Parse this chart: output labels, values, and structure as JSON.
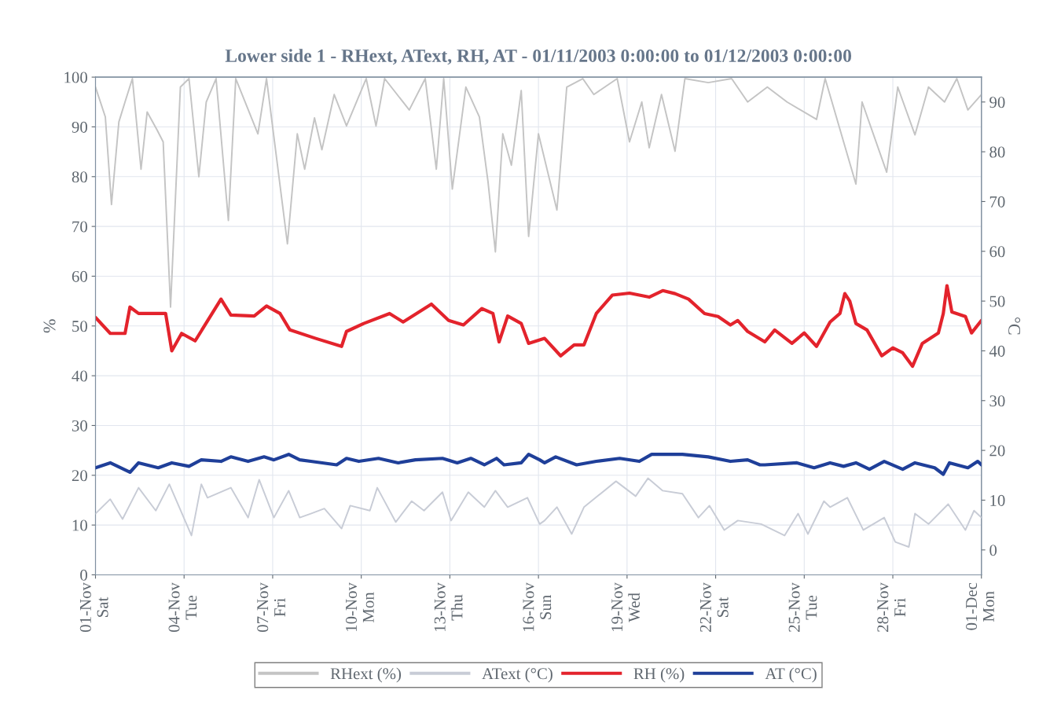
{
  "chart_data": {
    "type": "line",
    "title": "Lower side 1 - RHext, AText, RH, AT - 01/11/2003 0:00:00 to 01/12/2003 0:00:00",
    "ylabel": "%",
    "y2label": "°C",
    "xlim": [
      "2003-11-01",
      "2003-12-01"
    ],
    "xticks": [
      {
        "value": "2003-11-01",
        "label": "01-Nov\nSat"
      },
      {
        "value": "2003-11-04",
        "label": "04-Nov\nTue"
      },
      {
        "value": "2003-11-07",
        "label": "07-Nov\nFri"
      },
      {
        "value": "2003-11-10",
        "label": "10-Nov\nMon"
      },
      {
        "value": "2003-11-13",
        "label": "13-Nov\nThu"
      },
      {
        "value": "2003-11-16",
        "label": "16-Nov\nSun"
      },
      {
        "value": "2003-11-19",
        "label": "19-Nov\nWed"
      },
      {
        "value": "2003-11-22",
        "label": "22-Nov\nSat"
      },
      {
        "value": "2003-11-25",
        "label": "25-Nov\nTue"
      },
      {
        "value": "2003-11-28",
        "label": "28-Nov\nFri"
      },
      {
        "value": "2003-12-01",
        "label": "01-Dec\nMon"
      }
    ],
    "ylim": [
      0,
      100
    ],
    "yticks": [
      0,
      10,
      20,
      30,
      40,
      50,
      60,
      70,
      80,
      90,
      100
    ],
    "y2lim": [
      -5,
      95
    ],
    "y2ticks": [
      0,
      10,
      20,
      30,
      40,
      50,
      60,
      70,
      80,
      90
    ],
    "grid": true,
    "legend": "bottom",
    "marker": "none",
    "line_style": "solid",
    "series": [
      {
        "name": "RHext (%)",
        "color": "#c4c4c4",
        "axis": "y",
        "x": [
          "2003-11-01T00:00",
          "2003-11-01T08:00",
          "2003-11-01T13:00",
          "2003-11-01T19:00",
          "2003-11-02T00:00",
          "2003-11-02T06:00",
          "2003-11-02T13:00",
          "2003-11-02T18:00",
          "2003-11-03T02:00",
          "2003-11-03T07:00",
          "2003-11-03T13:00",
          "2003-11-03T21:00",
          "2003-11-04T04:00",
          "2003-11-04T12:00",
          "2003-11-04T18:00",
          "2003-11-05T02:00",
          "2003-11-05T12:00",
          "2003-11-05T18:00",
          "2003-11-06T12:00",
          "2003-11-06T19:00",
          "2003-11-07T12:00",
          "2003-11-07T20:00",
          "2003-11-08T02:00",
          "2003-11-08T10:00",
          "2003-11-08T16:00",
          "2003-11-09T02:00",
          "2003-11-09T12:00",
          "2003-11-10T04:00",
          "2003-11-10T12:00",
          "2003-11-10T19:00",
          "2003-11-11T15:00",
          "2003-11-12T04:00",
          "2003-11-12T13:00",
          "2003-11-12T19:00",
          "2003-11-13T02:00",
          "2003-11-13T13:00",
          "2003-11-14T00:00",
          "2003-11-14T07:00",
          "2003-11-14T13:00",
          "2003-11-14T19:00",
          "2003-11-15T02:00",
          "2003-11-15T10:00",
          "2003-11-15T16:00",
          "2003-11-16T00:00",
          "2003-11-16T15:00",
          "2003-11-16T23:00",
          "2003-11-17T12:00",
          "2003-11-17T21:00",
          "2003-11-18T16:00",
          "2003-11-19T02:00",
          "2003-11-19T12:00",
          "2003-11-19T18:00",
          "2003-11-20T04:00",
          "2003-11-20T15:00",
          "2003-11-20T23:00",
          "2003-11-21T18:00",
          "2003-11-22T13:00",
          "2003-11-23T02:00",
          "2003-11-23T18:00",
          "2003-11-24T10:00",
          "2003-11-25T10:00",
          "2003-11-25T17:00",
          "2003-11-26T18:00",
          "2003-11-26T23:00",
          "2003-11-27T19:00",
          "2003-11-28T04:00",
          "2003-11-28T18:00",
          "2003-11-29T05:00",
          "2003-11-29T18:00",
          "2003-11-30T04:00",
          "2003-11-30T13:00",
          "2003-12-01T00:00"
        ],
        "values": [
          98,
          92,
          74.4,
          91,
          95,
          99.7,
          81.5,
          93,
          89.4,
          87,
          53.8,
          98,
          99.7,
          80,
          95,
          99.7,
          71.2,
          99.7,
          88.6,
          99.7,
          66.5,
          88.6,
          81.5,
          91.8,
          85.4,
          96.5,
          90.2,
          99.7,
          90.2,
          99.7,
          93.4,
          99.7,
          81.5,
          99.7,
          77.5,
          98,
          92,
          79,
          64.9,
          88.6,
          82.3,
          97.3,
          68,
          88.6,
          73.3,
          98,
          99.7,
          96.5,
          99.7,
          87,
          95,
          85.8,
          96.5,
          85.1,
          99.7,
          98.9,
          99.7,
          95,
          98,
          95,
          91.5,
          99.7,
          78.5,
          95,
          80.9,
          98,
          88.4,
          98,
          95,
          99.7,
          93.4,
          96.5
        ]
      },
      {
        "name": "AText (°C)",
        "color": "#c8ccd6",
        "axis": "y2",
        "x": [
          "2003-11-01T00:00",
          "2003-11-01T12:00",
          "2003-11-01T22:00",
          "2003-11-02T11:00",
          "2003-11-03T01:00",
          "2003-11-03T12:00",
          "2003-11-04T06:00",
          "2003-11-04T14:00",
          "2003-11-04T19:00",
          "2003-11-05T14:00",
          "2003-11-06T04:00",
          "2003-11-06T13:00",
          "2003-11-07T01:00",
          "2003-11-07T13:00",
          "2003-11-07T22:00",
          "2003-11-08T07:00",
          "2003-11-08T18:00",
          "2003-11-09T08:00",
          "2003-11-09T15:00",
          "2003-11-10T07:00",
          "2003-11-10T13:00",
          "2003-11-11T04:00",
          "2003-11-11T17:00",
          "2003-11-12T03:00",
          "2003-11-12T18:00",
          "2003-11-13T01:00",
          "2003-11-13T15:00",
          "2003-11-14T04:00",
          "2003-11-14T13:00",
          "2003-11-14T23:00",
          "2003-11-15T15:00",
          "2003-11-16T01:00",
          "2003-11-16T05:00",
          "2003-11-16T15:00",
          "2003-11-17T03:00",
          "2003-11-17T13:00",
          "2003-11-18T15:00",
          "2003-11-19T07:00",
          "2003-11-19T17:00",
          "2003-11-20T05:00",
          "2003-11-20T21:00",
          "2003-11-21T10:00",
          "2003-11-21T19:00",
          "2003-11-22T07:00",
          "2003-11-22T18:00",
          "2003-11-23T13:00",
          "2003-11-24T08:00",
          "2003-11-24T19:00",
          "2003-11-25T03:00",
          "2003-11-25T16:00",
          "2003-11-25T21:00",
          "2003-11-26T11:00",
          "2003-11-27T00:00",
          "2003-11-27T17:00",
          "2003-11-28T02:00",
          "2003-11-28T13:00",
          "2003-11-28T18:00",
          "2003-11-29T05:00",
          "2003-11-29T21:00",
          "2003-11-30T11:00",
          "2003-11-30T18:00",
          "2003-12-01T00:00"
        ],
        "values": [
          7.3,
          10.2,
          6.2,
          12.5,
          7.9,
          13.2,
          2.9,
          13.2,
          10.5,
          12.5,
          6.5,
          14.1,
          6.5,
          11.9,
          6.5,
          7.3,
          8.3,
          4.3,
          8.9,
          7.9,
          12.5,
          5.6,
          9.8,
          7.9,
          11.6,
          5.9,
          11.6,
          8.6,
          11.9,
          8.6,
          10.5,
          5.2,
          5.9,
          8.6,
          3.2,
          8.6,
          13.8,
          10.8,
          14.4,
          11.9,
          11.3,
          6.5,
          8.9,
          4.0,
          5.9,
          5.2,
          2.9,
          7.3,
          3.2,
          9.8,
          8.6,
          10.5,
          4.0,
          6.5,
          1.6,
          0.6,
          7.3,
          5.2,
          9.2,
          4.0,
          7.9,
          6.5
        ]
      },
      {
        "name": "RH (%)",
        "color": "#e3232c",
        "axis": "y",
        "x": [
          "2003-11-01T00:00",
          "2003-11-01T12:00",
          "2003-11-02T00:00",
          "2003-11-02T04:00",
          "2003-11-02T11:00",
          "2003-11-03T09:00",
          "2003-11-03T14:00",
          "2003-11-03T22:00",
          "2003-11-04T09:00",
          "2003-11-05T06:00",
          "2003-11-05T14:00",
          "2003-11-06T09:00",
          "2003-11-06T19:00",
          "2003-11-07T06:00",
          "2003-11-07T14:00",
          "2003-11-08T11:00",
          "2003-11-09T08:00",
          "2003-11-09T12:00",
          "2003-11-10T02:00",
          "2003-11-10T23:00",
          "2003-11-11T10:00",
          "2003-11-12T09:00",
          "2003-11-12T23:00",
          "2003-11-13T11:00",
          "2003-11-14T02:00",
          "2003-11-14T11:00",
          "2003-11-14T16:00",
          "2003-11-14T23:00",
          "2003-11-15T10:00",
          "2003-11-15T16:00",
          "2003-11-16T05:00",
          "2003-11-16T18:00",
          "2003-11-17T05:00",
          "2003-11-17T13:00",
          "2003-11-17T23:00",
          "2003-11-18T12:00",
          "2003-11-19T02:00",
          "2003-11-19T18:00",
          "2003-11-20T05:00",
          "2003-11-20T15:00",
          "2003-11-21T02:00",
          "2003-11-21T15:00",
          "2003-11-22T02:00",
          "2003-11-22T12:00",
          "2003-11-22T18:00",
          "2003-11-23T02:00",
          "2003-11-23T16:00",
          "2003-11-24T00:00",
          "2003-11-24T14:00",
          "2003-11-25T00:00",
          "2003-11-25T10:00",
          "2003-11-25T21:00",
          "2003-11-26T05:00",
          "2003-11-26T09:00",
          "2003-11-26T13:00",
          "2003-11-26T18:00",
          "2003-11-27T03:00",
          "2003-11-27T15:00",
          "2003-11-28T00:00",
          "2003-11-28T08:00",
          "2003-11-28T16:00",
          "2003-11-29T00:00",
          "2003-11-29T13:00",
          "2003-11-29T17:00",
          "2003-11-29T20:00",
          "2003-11-30T00:00",
          "2003-11-30T11:00",
          "2003-11-30T16:00",
          "2003-12-01T00:00"
        ],
        "values": [
          51.7,
          48.5,
          48.5,
          53.8,
          52.5,
          52.5,
          45,
          48.5,
          47,
          55.4,
          52.2,
          52,
          54,
          52.5,
          49.2,
          47.5,
          45.9,
          48.9,
          50.5,
          52.5,
          50.8,
          54.4,
          51.1,
          50.2,
          53.5,
          52.5,
          46.8,
          52,
          50.5,
          46.5,
          47.5,
          44,
          46.2,
          46.2,
          52.5,
          56.2,
          56.6,
          55.8,
          57.1,
          56.5,
          55.4,
          52.5,
          51.9,
          50.2,
          51.1,
          48.9,
          46.8,
          49.2,
          46.5,
          48.6,
          45.9,
          50.8,
          52.5,
          56.5,
          55,
          50.5,
          49.2,
          44,
          45.6,
          44.6,
          41.9,
          46.5,
          48.6,
          52.5,
          58.1,
          52.8,
          51.9,
          48.6,
          51.1
        ]
      },
      {
        "name": "AT (°C)",
        "color": "#1f3f99",
        "axis": "y2",
        "x": [
          "2003-11-01T00:00",
          "2003-11-01T12:00",
          "2003-11-02T04:00",
          "2003-11-02T11:00",
          "2003-11-03T03:00",
          "2003-11-03T14:00",
          "2003-11-04T04:00",
          "2003-11-04T14:00",
          "2003-11-05T06:00",
          "2003-11-05T14:00",
          "2003-11-06T04:00",
          "2003-11-06T17:00",
          "2003-11-07T01:00",
          "2003-11-07T13:00",
          "2003-11-07T22:00",
          "2003-11-08T07:00",
          "2003-11-09T04:00",
          "2003-11-09T12:00",
          "2003-11-09T22:00",
          "2003-11-10T14:00",
          "2003-11-11T06:00",
          "2003-11-11T20:00",
          "2003-11-12T18:00",
          "2003-11-13T06:00",
          "2003-11-13T17:00",
          "2003-11-14T04:00",
          "2003-11-14T14:00",
          "2003-11-14T20:00",
          "2003-11-15T10:00",
          "2003-11-15T16:00",
          "2003-11-16T01:00",
          "2003-11-16T05:00",
          "2003-11-16T14:00",
          "2003-11-17T07:00",
          "2003-11-17T23:00",
          "2003-11-18T18:00",
          "2003-11-19T10:00",
          "2003-11-19T20:00",
          "2003-11-20T21:00",
          "2003-11-21T18:00",
          "2003-11-22T12:00",
          "2003-11-23T02:00",
          "2003-11-23T12:00",
          "2003-11-23T16:00",
          "2003-11-24T18:00",
          "2003-11-25T08:00",
          "2003-11-25T21:00",
          "2003-11-26T08:00",
          "2003-11-26T18:00",
          "2003-11-27T05:00",
          "2003-11-27T17:00",
          "2003-11-28T08:00",
          "2003-11-28T18:00",
          "2003-11-29T10:00",
          "2003-11-29T17:00",
          "2003-11-29T22:00",
          "2003-11-30T13:00",
          "2003-11-30T21:00",
          "2003-12-01T00:00"
        ],
        "values": [
          16.5,
          17.5,
          15.6,
          17.5,
          16.5,
          17.5,
          16.8,
          18.1,
          17.8,
          18.7,
          17.8,
          18.7,
          18.1,
          19.2,
          18.1,
          17.8,
          17.1,
          18.4,
          17.8,
          18.4,
          17.5,
          18.1,
          18.4,
          17.5,
          18.4,
          17.1,
          18.4,
          17.1,
          17.5,
          19.2,
          18.1,
          17.5,
          18.7,
          17.1,
          17.8,
          18.4,
          17.8,
          19.2,
          19.2,
          18.7,
          17.8,
          18.1,
          17.1,
          17.1,
          17.5,
          16.5,
          17.5,
          16.8,
          17.5,
          16.2,
          17.8,
          16.2,
          17.5,
          16.5,
          15.2,
          17.5,
          16.5,
          17.8,
          17.1
        ]
      }
    ]
  }
}
